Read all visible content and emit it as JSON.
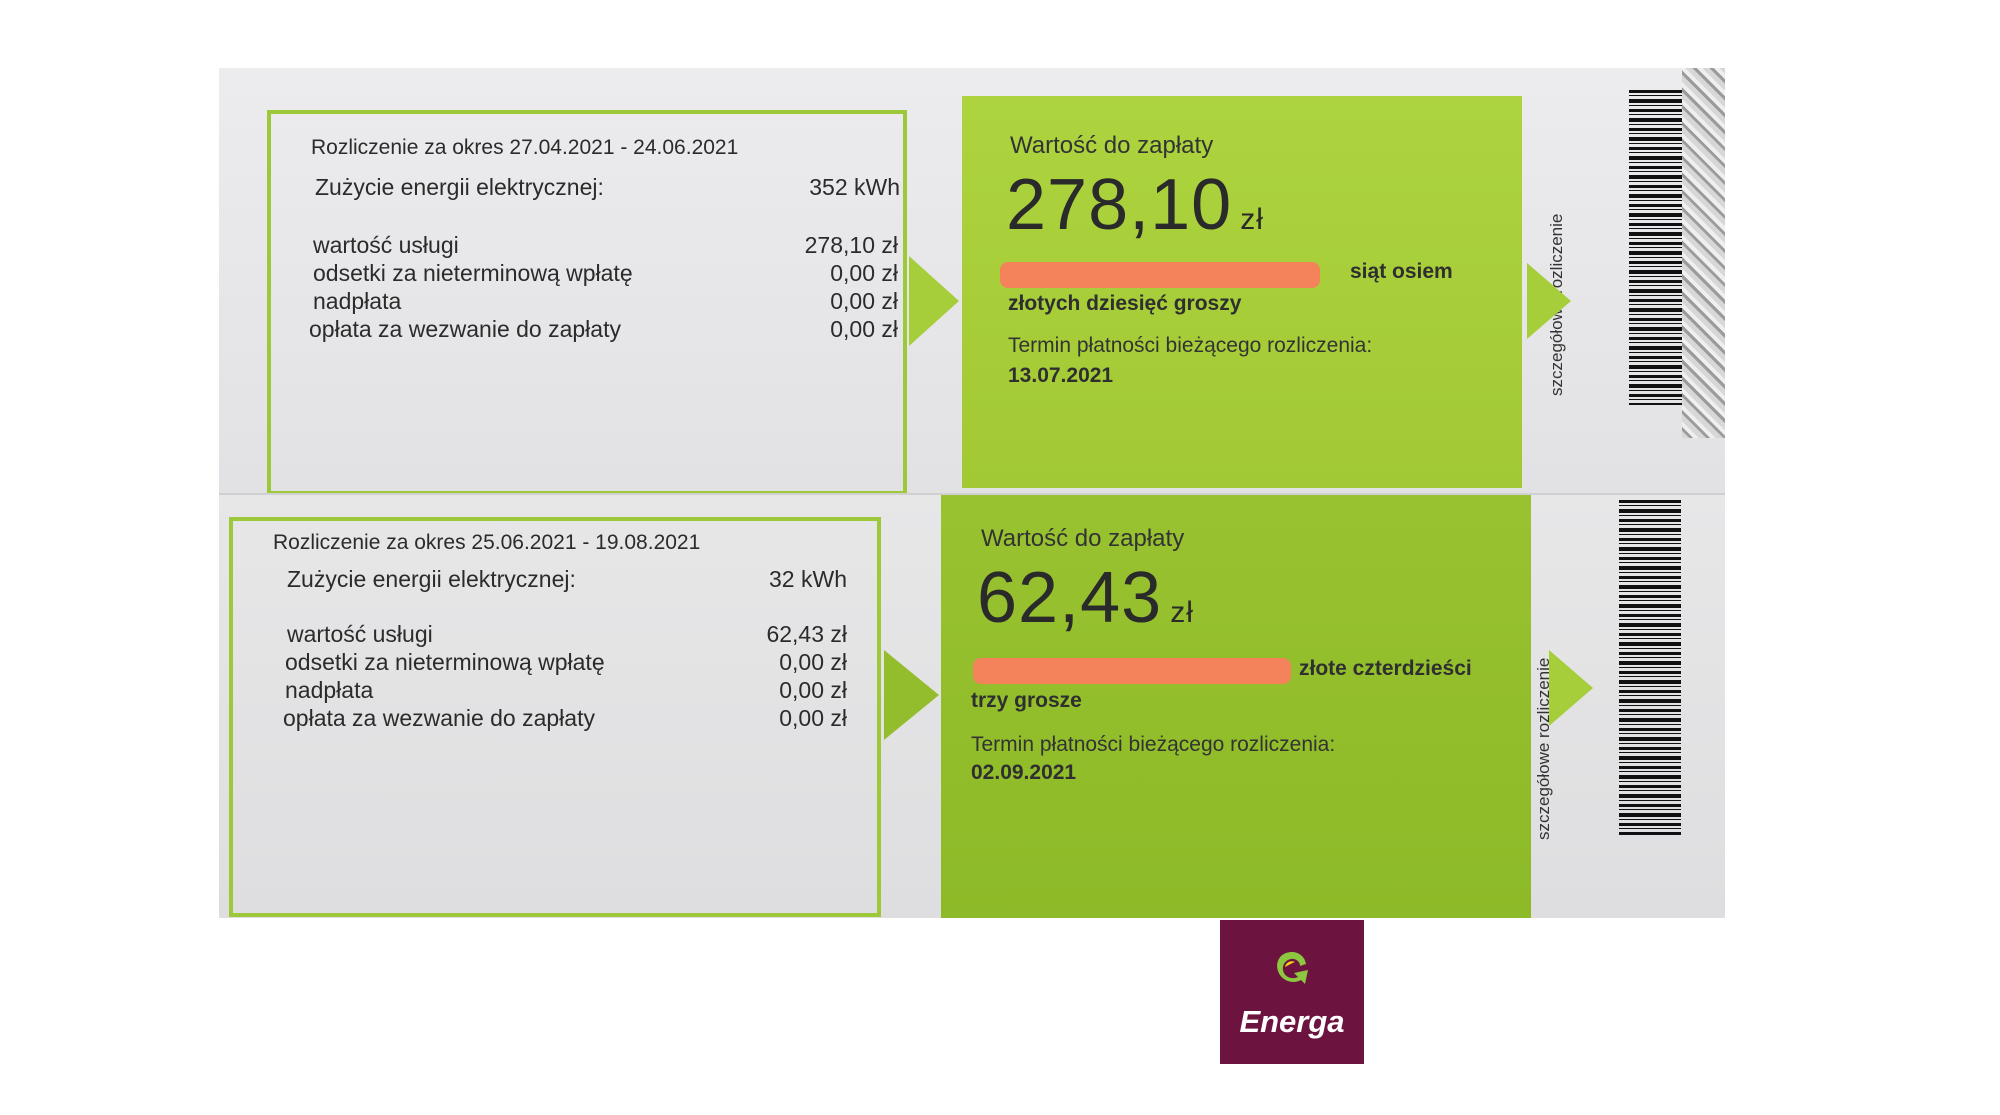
{
  "bills": [
    {
      "period": "Rozliczenie za okres 27.04.2021 - 24.06.2021",
      "usage_label": "Zużycie energii elektrycznej:",
      "usage_value": "352 kWh",
      "lines": [
        {
          "label": "wartość usługi",
          "value": "278,10 zł"
        },
        {
          "label": "odsetki za nieterminową wpłatę",
          "value": "0,00 zł"
        },
        {
          "label": "nadpłata",
          "value": "0,00 zł"
        },
        {
          "label": "opłata za wezwanie do zapłaty",
          "value": "0,00 zł"
        }
      ],
      "amount_label": "Wartość do zapłaty",
      "amount": "278,10",
      "currency": "zł",
      "words_line1": "siąt osiem",
      "words_line2": "złotych dziesięć groszy",
      "due_label": "Termin płatności bieżącego rozliczenia:",
      "due_date": "13.07.2021",
      "side_label": "szczegółowe rozliczenie"
    },
    {
      "period": "Rozliczenie za okres 25.06.2021 - 19.08.2021",
      "usage_label": "Zużycie energii elektrycznej:",
      "usage_value": "32 kWh",
      "lines": [
        {
          "label": "wartość usługi",
          "value": "62,43 zł"
        },
        {
          "label": "odsetki za nieterminową wpłatę",
          "value": "0,00 zł"
        },
        {
          "label": "nadpłata",
          "value": "0,00 zł"
        },
        {
          "label": "opłata za wezwanie do zapłaty",
          "value": "0,00 zł"
        }
      ],
      "amount_label": "Wartość do zapłaty",
      "amount": "62,43",
      "currency": "zł",
      "words_line1": "złote czterdzieści",
      "words_line2": "trzy grosze",
      "due_label": "Termin płatności bieżącego rozliczenia:",
      "due_date": "02.09.2021",
      "side_label": "szczegółowe rozliczenie"
    }
  ],
  "logo": {
    "text": "Energa"
  },
  "colors": {
    "green": "#a6cd3a",
    "redaction": "#f4825b",
    "brand": "#6d1340"
  }
}
